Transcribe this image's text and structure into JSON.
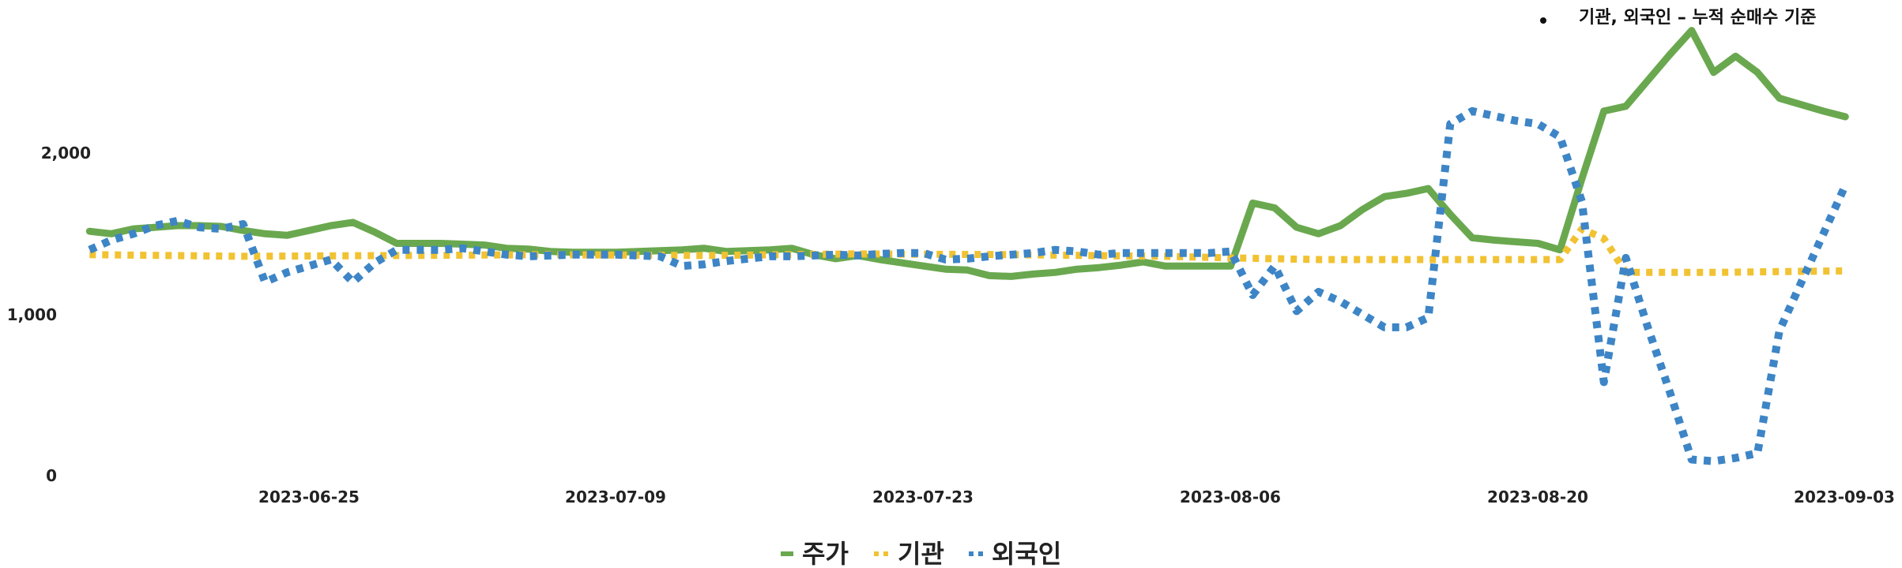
{
  "chart_data": {
    "type": "line",
    "annotation": {
      "bullet": "•",
      "text": "기관, 외국인 – 누적 순매수 기준"
    },
    "y_axis": {
      "ticks": [
        "0",
        "1,000",
        "2,000"
      ],
      "ylim": [
        0,
        2800
      ]
    },
    "x_axis": {
      "tick_labels": [
        "2023-06-25",
        "2023-07-09",
        "2023-07-23",
        "2023-08-06",
        "2023-08-20",
        "2023-09-03"
      ]
    },
    "grid": false,
    "legend_position": "bottom-center",
    "series": [
      {
        "name": "주가",
        "color": "#6aa84f",
        "style": "solid",
        "x": [
          "2023-06-15",
          "2023-06-16",
          "2023-06-17",
          "2023-06-18",
          "2023-06-19",
          "2023-06-20",
          "2023-06-21",
          "2023-06-22",
          "2023-06-23",
          "2023-06-24",
          "2023-06-25",
          "2023-06-26",
          "2023-06-27",
          "2023-06-28",
          "2023-06-29",
          "2023-06-30",
          "2023-07-01",
          "2023-07-02",
          "2023-07-03",
          "2023-07-04",
          "2023-07-05",
          "2023-07-06",
          "2023-07-07",
          "2023-07-08",
          "2023-07-09",
          "2023-07-10",
          "2023-07-11",
          "2023-07-12",
          "2023-07-13",
          "2023-07-14",
          "2023-07-15",
          "2023-07-16",
          "2023-07-17",
          "2023-07-18",
          "2023-07-19",
          "2023-07-20",
          "2023-07-21",
          "2023-07-22",
          "2023-07-23",
          "2023-07-24",
          "2023-07-25",
          "2023-07-26",
          "2023-07-27",
          "2023-07-28",
          "2023-07-29",
          "2023-07-30",
          "2023-07-31",
          "2023-08-01",
          "2023-08-02",
          "2023-08-03",
          "2023-08-04",
          "2023-08-05",
          "2023-08-06",
          "2023-08-07",
          "2023-08-08",
          "2023-08-09",
          "2023-08-10",
          "2023-08-11",
          "2023-08-12",
          "2023-08-13",
          "2023-08-14",
          "2023-08-15",
          "2023-08-16",
          "2023-08-17",
          "2023-08-18",
          "2023-08-19",
          "2023-08-20",
          "2023-08-21",
          "2023-08-22",
          "2023-08-23",
          "2023-08-24",
          "2023-08-25",
          "2023-08-26",
          "2023-08-27",
          "2023-08-28",
          "2023-08-29",
          "2023-08-30",
          "2023-08-31",
          "2023-09-01",
          "2023-09-02",
          "2023-09-03"
        ],
        "values": [
          1515,
          1500,
          1530,
          1540,
          1550,
          1550,
          1545,
          1520,
          1500,
          1490,
          1520,
          1550,
          1570,
          1510,
          1440,
          1440,
          1440,
          1435,
          1430,
          1410,
          1405,
          1390,
          1385,
          1385,
          1385,
          1390,
          1395,
          1400,
          1410,
          1390,
          1395,
          1400,
          1410,
          1370,
          1345,
          1365,
          1340,
          1320,
          1300,
          1280,
          1275,
          1240,
          1235,
          1250,
          1260,
          1280,
          1290,
          1305,
          1325,
          1300,
          1300,
          1300,
          1300,
          1690,
          1660,
          1540,
          1500,
          1550,
          1650,
          1730,
          1750,
          1780,
          1620,
          1475,
          1460,
          1450,
          1440,
          1400,
          1840,
          2260,
          2290,
          2450,
          2610,
          2760,
          2500,
          2600,
          2500,
          2340,
          2300,
          2260,
          2225
        ]
      },
      {
        "name": "기관",
        "color": "#f1c232",
        "style": "dotted",
        "x": [
          "2023-06-15",
          "2023-06-22",
          "2023-06-29",
          "2023-07-06",
          "2023-07-13",
          "2023-07-20",
          "2023-07-27",
          "2023-08-03",
          "2023-08-06",
          "2023-08-10",
          "2023-08-17",
          "2023-08-21",
          "2023-08-22",
          "2023-08-23",
          "2023-08-24",
          "2023-08-28",
          "2023-09-03"
        ],
        "values": [
          1370,
          1360,
          1365,
          1370,
          1365,
          1375,
          1370,
          1360,
          1350,
          1340,
          1340,
          1340,
          1530,
          1470,
          1260,
          1260,
          1270
        ]
      },
      {
        "name": "외국인",
        "color": "#3d85c6",
        "style": "dotted",
        "x": [
          "2023-06-15",
          "2023-06-16",
          "2023-06-17",
          "2023-06-18",
          "2023-06-19",
          "2023-06-20",
          "2023-06-21",
          "2023-06-22",
          "2023-06-23",
          "2023-06-24",
          "2023-06-25",
          "2023-06-26",
          "2023-06-27",
          "2023-06-28",
          "2023-06-29",
          "2023-06-30",
          "2023-07-01",
          "2023-07-02",
          "2023-07-03",
          "2023-07-04",
          "2023-07-05",
          "2023-07-06",
          "2023-07-07",
          "2023-07-08",
          "2023-07-09",
          "2023-07-10",
          "2023-07-11",
          "2023-07-12",
          "2023-07-13",
          "2023-07-14",
          "2023-07-15",
          "2023-07-16",
          "2023-07-17",
          "2023-07-18",
          "2023-07-19",
          "2023-07-20",
          "2023-07-21",
          "2023-07-22",
          "2023-07-23",
          "2023-07-24",
          "2023-07-25",
          "2023-07-26",
          "2023-07-27",
          "2023-07-28",
          "2023-07-29",
          "2023-07-30",
          "2023-07-31",
          "2023-08-01",
          "2023-08-02",
          "2023-08-03",
          "2023-08-04",
          "2023-08-05",
          "2023-08-06",
          "2023-08-07",
          "2023-08-08",
          "2023-08-09",
          "2023-08-10",
          "2023-08-11",
          "2023-08-12",
          "2023-08-13",
          "2023-08-14",
          "2023-08-15",
          "2023-08-16",
          "2023-08-17",
          "2023-08-18",
          "2023-08-19",
          "2023-08-20",
          "2023-08-21",
          "2023-08-22",
          "2023-08-23",
          "2023-08-24",
          "2023-08-25",
          "2023-08-26",
          "2023-08-27",
          "2023-08-28",
          "2023-08-29",
          "2023-08-30",
          "2023-08-31",
          "2023-09-01",
          "2023-09-02",
          "2023-09-03"
        ],
        "values": [
          1400,
          1460,
          1500,
          1550,
          1580,
          1540,
          1530,
          1560,
          1200,
          1260,
          1300,
          1340,
          1200,
          1320,
          1400,
          1400,
          1400,
          1410,
          1390,
          1370,
          1360,
          1365,
          1370,
          1370,
          1370,
          1365,
          1360,
          1300,
          1310,
          1330,
          1345,
          1360,
          1360,
          1365,
          1370,
          1365,
          1375,
          1380,
          1380,
          1340,
          1345,
          1360,
          1370,
          1380,
          1400,
          1390,
          1370,
          1380,
          1380,
          1380,
          1380,
          1380,
          1390,
          1120,
          1300,
          1020,
          1140,
          1080,
          1000,
          920,
          920,
          980,
          2180,
          2260,
          2230,
          2200,
          2180,
          2100,
          1700,
          580,
          1350,
          920,
          520,
          100,
          90,
          110,
          140,
          900,
          1200,
          1500,
          1800
        ]
      }
    ]
  }
}
